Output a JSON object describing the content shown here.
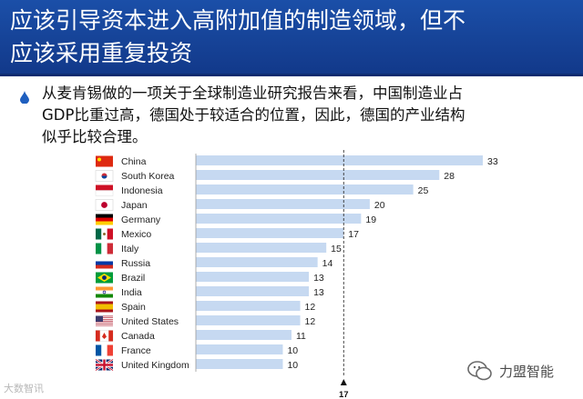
{
  "header": {
    "title_line1": "应该引导资本进入高附加值的制造领域，但不",
    "title_line2": "应该采用重复投资"
  },
  "bullet": {
    "line1": "从麦肯锡做的一项关于全球制造业研究报告来看，中国制造业占",
    "line2": "GDP比重过高，德国处于较适合的位置，因此，德国的产业结构",
    "line3": "似乎比较合理。"
  },
  "chart_data": {
    "type": "bar",
    "orientation": "horizontal",
    "categories": [
      "China",
      "South Korea",
      "Indonesia",
      "Japan",
      "Germany",
      "Mexico",
      "Italy",
      "Russia",
      "Brazil",
      "India",
      "Spain",
      "United States",
      "Canada",
      "France",
      "United Kingdom"
    ],
    "values": [
      33,
      28,
      25,
      20,
      19,
      17,
      15,
      14,
      13,
      13,
      12,
      12,
      11,
      10,
      10
    ],
    "xlim": [
      0,
      35
    ],
    "reference_line": {
      "value": 17,
      "label": "17"
    },
    "bar_color": "#c6d9f1",
    "flag_icons": [
      "flag-china-icon",
      "flag-south-korea-icon",
      "flag-indonesia-icon",
      "flag-japan-icon",
      "flag-germany-icon",
      "flag-mexico-icon",
      "flag-italy-icon",
      "flag-russia-icon",
      "flag-brazil-icon",
      "flag-india-icon",
      "flag-spain-icon",
      "flag-united-states-icon",
      "flag-canada-icon",
      "flag-france-icon",
      "flag-united-kingdom-icon"
    ]
  },
  "watermarks": {
    "left": "大数智讯",
    "right": "力盟智能"
  },
  "colors": {
    "title_bar": "#1b4fa8",
    "title_text": "#ffffff",
    "bullet": "#1f5fbf"
  }
}
